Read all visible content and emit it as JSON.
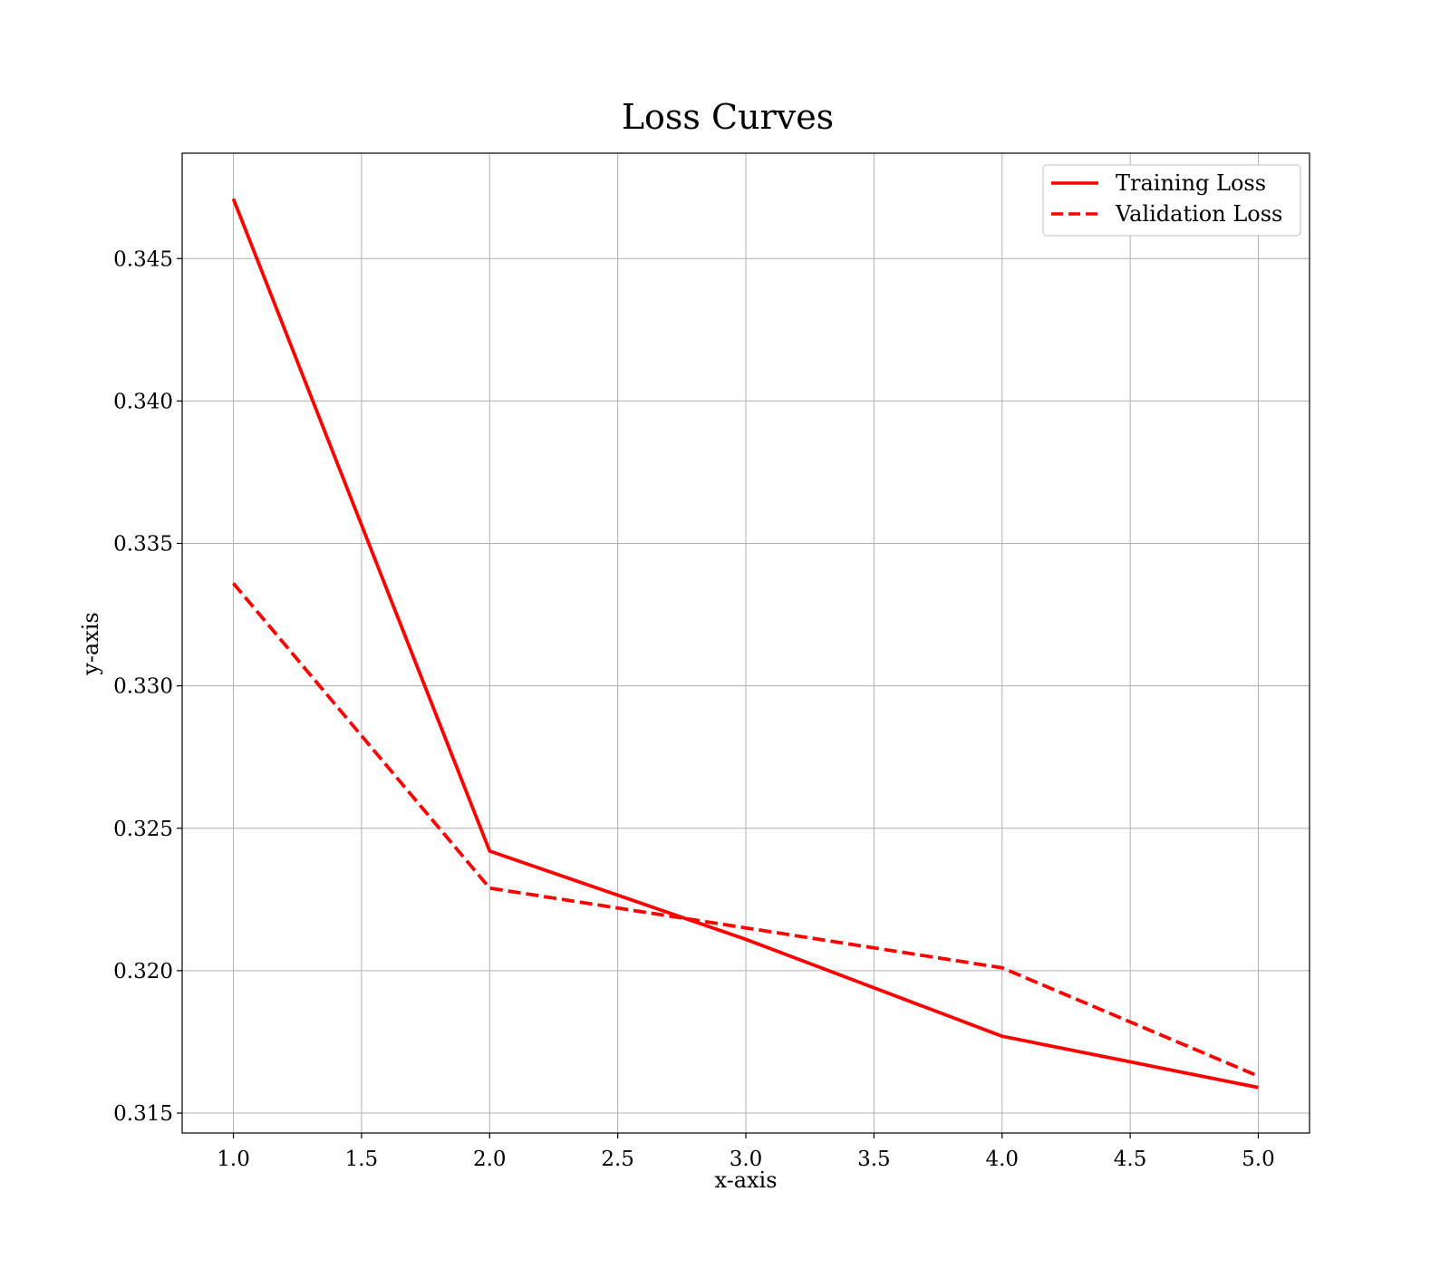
{
  "chart_data": {
    "type": "line",
    "title": "Loss Curves",
    "xlabel": "x-axis",
    "ylabel": "y-axis",
    "xlim": [
      0.8,
      5.2
    ],
    "ylim": [
      0.3143,
      0.3487
    ],
    "x": [
      1,
      2,
      3,
      4,
      5
    ],
    "xticks": [
      1.0,
      1.5,
      2.0,
      2.5,
      3.0,
      3.5,
      4.0,
      4.5,
      5.0
    ],
    "xtick_labels": [
      "1.0",
      "1.5",
      "2.0",
      "2.5",
      "3.0",
      "3.5",
      "4.0",
      "4.5",
      "5.0"
    ],
    "yticks": [
      0.315,
      0.32,
      0.325,
      0.33,
      0.335,
      0.34,
      0.345
    ],
    "ytick_labels": [
      "0.315",
      "0.320",
      "0.325",
      "0.330",
      "0.335",
      "0.340",
      "0.345"
    ],
    "grid": true,
    "legend_position": "top-right",
    "series": [
      {
        "name": "Training Loss",
        "values": [
          0.3471,
          0.3242,
          0.3211,
          0.3177,
          0.3159
        ],
        "color": "#ff0000",
        "linestyle": "solid"
      },
      {
        "name": "Validation Loss",
        "values": [
          0.3336,
          0.3229,
          0.3215,
          0.3201,
          0.3163
        ],
        "color": "#ff0000",
        "linestyle": "dashed"
      }
    ]
  }
}
